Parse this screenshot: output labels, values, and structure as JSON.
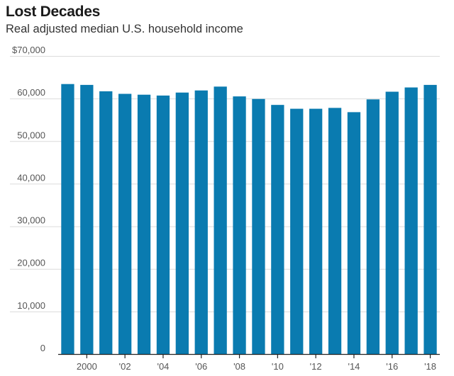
{
  "header": {
    "title": "Lost Decades",
    "subtitle": "Real adjusted median U.S. household income"
  },
  "colors": {
    "bar": "#0a7bb0",
    "grid": "#dcdcdc",
    "axis": "#222222"
  },
  "chart_data": {
    "type": "bar",
    "title": "Lost Decades",
    "subtitle": "Real adjusted median U.S. household income",
    "xlabel": "",
    "ylabel": "",
    "ylim": [
      0,
      70000
    ],
    "yticks": [
      0,
      10000,
      20000,
      30000,
      40000,
      50000,
      60000,
      70000
    ],
    "ytick_labels": [
      "0",
      "10,000",
      "20,000",
      "30,000",
      "40,000",
      "50,000",
      "60,000",
      "$70,000"
    ],
    "categories": [
      "1999",
      "2000",
      "2001",
      "2002",
      "2003",
      "2004",
      "2005",
      "2006",
      "2007",
      "2008",
      "2009",
      "2010",
      "2011",
      "2012",
      "2013",
      "2014",
      "2015",
      "2016",
      "2017",
      "2018"
    ],
    "values": [
      63400,
      63200,
      61700,
      61100,
      60900,
      60700,
      61400,
      61900,
      62800,
      60500,
      59900,
      58500,
      57600,
      57600,
      57800,
      56800,
      59800,
      61600,
      62600,
      63200
    ],
    "xtick_labels": [
      {
        "index": 1,
        "label": "2000"
      },
      {
        "index": 3,
        "label": "'02"
      },
      {
        "index": 5,
        "label": "'04"
      },
      {
        "index": 7,
        "label": "'06"
      },
      {
        "index": 9,
        "label": "'08"
      },
      {
        "index": 11,
        "label": "'10"
      },
      {
        "index": 13,
        "label": "'12"
      },
      {
        "index": 15,
        "label": "'14"
      },
      {
        "index": 17,
        "label": "'16"
      },
      {
        "index": 19,
        "label": "'18"
      }
    ],
    "grid": true
  }
}
